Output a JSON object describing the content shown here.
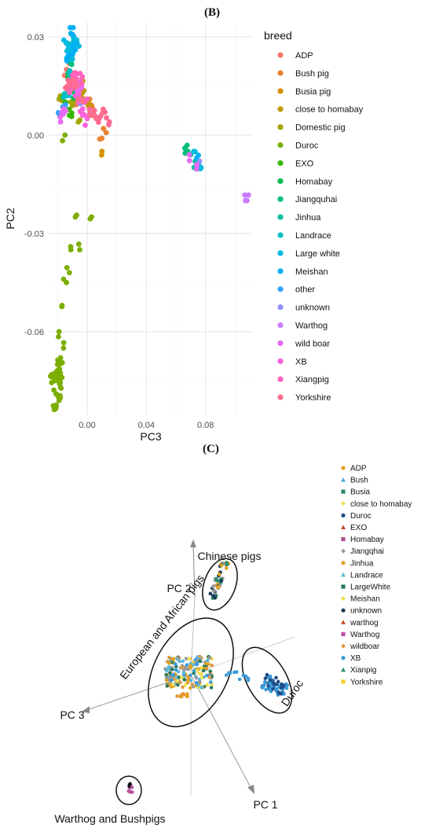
{
  "panel_b_label": "(B)",
  "panel_c_label": "(C)",
  "chart_data": [
    {
      "type": "scatter",
      "xlabel": "PC3",
      "ylabel": "PC2",
      "x_ticks": [
        "0.00",
        "0.04",
        "0.08"
      ],
      "x_tick_values": [
        0.0,
        0.04,
        0.08
      ],
      "y_ticks": [
        "0.03",
        "0.00",
        "-0.03",
        "-0.06"
      ],
      "y_tick_values": [
        0.03,
        0.0,
        -0.03,
        -0.06
      ],
      "xlim": [
        -0.026,
        0.112
      ],
      "ylim": [
        -0.0855,
        0.0345
      ],
      "grid": true,
      "legend_title": "breed",
      "legend_position": "right",
      "series": [
        {
          "name": "ADP",
          "color": "#F8766D",
          "points": [
            [
              -0.012,
              0.014
            ],
            [
              -0.01,
              0.018
            ],
            [
              -0.008,
              0.011
            ],
            [
              -0.014,
              0.02
            ]
          ]
        },
        {
          "name": "Bush pig",
          "color": "#EA8331",
          "points": [
            [
              0.01,
              -0.001
            ],
            [
              0.011,
              0.002
            ],
            [
              0.003,
              0.009
            ]
          ]
        },
        {
          "name": "Busia pig",
          "color": "#D89000",
          "points": [
            [
              0.01,
              -0.005
            ],
            [
              -0.005,
              0.012
            ],
            [
              0.004,
              0.007
            ]
          ]
        },
        {
          "name": "close to homabay",
          "color": "#C09B00",
          "points": [
            [
              -0.004,
              0.016
            ],
            [
              -0.003,
              0.013
            ],
            [
              0.001,
              0.009
            ]
          ]
        },
        {
          "name": "Domestic pig",
          "color": "#A3A500",
          "points": [
            [
              -0.018,
              0.012
            ],
            [
              -0.01,
              0.009
            ],
            [
              -0.006,
              0.004
            ]
          ]
        },
        {
          "name": "Duroc",
          "color": "#7CAE00",
          "points": [
            [
              -0.02,
              -0.072
            ],
            [
              -0.022,
              -0.075
            ],
            [
              -0.018,
              -0.077
            ],
            [
              -0.021,
              -0.079
            ],
            [
              -0.019,
              -0.081
            ],
            [
              -0.017,
              -0.074
            ],
            [
              -0.02,
              -0.07
            ],
            [
              -0.023,
              -0.073
            ],
            [
              -0.018,
              -0.068
            ],
            [
              -0.019,
              -0.06
            ],
            [
              -0.017,
              -0.052
            ],
            [
              -0.014,
              -0.045
            ],
            [
              -0.011,
              -0.035
            ],
            [
              -0.005,
              -0.035
            ],
            [
              -0.008,
              -0.025
            ],
            [
              0.003,
              -0.025
            ],
            [
              -0.012,
              -0.042
            ],
            [
              -0.015,
              0.0
            ],
            [
              -0.021,
              -0.083
            ],
            [
              -0.016,
              -0.065
            ]
          ]
        },
        {
          "name": "EXO",
          "color": "#39B600",
          "points": [
            [
              -0.015,
              0.01
            ],
            [
              -0.012,
              0.006
            ]
          ]
        },
        {
          "name": "Homabay",
          "color": "#00BB4E",
          "points": [
            [
              -0.013,
              0.017
            ],
            [
              -0.009,
              0.013
            ]
          ]
        },
        {
          "name": "Jiangquhai",
          "color": "#00BF7D",
          "points": [
            [
              -0.011,
              0.022
            ],
            [
              0.066,
              -0.004
            ],
            [
              0.068,
              -0.005
            ]
          ]
        },
        {
          "name": "Jinhua",
          "color": "#00C1A3",
          "points": [
            [
              -0.013,
              0.026
            ],
            [
              0.07,
              -0.006
            ],
            [
              0.073,
              -0.008
            ]
          ]
        },
        {
          "name": "Landrace",
          "color": "#00BFC4",
          "points": [
            [
              -0.014,
              0.012
            ],
            [
              -0.011,
              0.018
            ],
            [
              0.075,
              -0.009
            ]
          ]
        },
        {
          "name": "Large white",
          "color": "#00BAE0",
          "points": [
            [
              -0.012,
              0.027
            ],
            [
              -0.009,
              0.03
            ],
            [
              -0.014,
              0.028
            ],
            [
              -0.01,
              0.025
            ],
            [
              -0.007,
              0.029
            ],
            [
              0.072,
              -0.005
            ],
            [
              0.077,
              -0.01
            ]
          ]
        },
        {
          "name": "Meishan",
          "color": "#00B0F6",
          "points": [
            [
              -0.011,
              0.031
            ],
            [
              -0.008,
              0.026
            ],
            [
              -0.013,
              0.024
            ],
            [
              0.074,
              -0.007
            ]
          ]
        },
        {
          "name": "other",
          "color": "#35A2FF",
          "points": [
            [
              -0.018,
              0.006
            ],
            [
              -0.015,
              0.009
            ]
          ]
        },
        {
          "name": "unknown",
          "color": "#9590FF",
          "points": [
            [
              -0.005,
              0.01
            ],
            [
              0.076,
              -0.008
            ]
          ]
        },
        {
          "name": "Warthog",
          "color": "#C77CFF",
          "points": [
            [
              0.107,
              -0.02
            ],
            [
              0.108,
              -0.02
            ]
          ]
        },
        {
          "name": "wild boar",
          "color": "#E76BF3",
          "points": [
            [
              -0.018,
              0.004
            ],
            [
              -0.016,
              0.008
            ],
            [
              -0.005,
              0.014
            ],
            [
              0.069,
              -0.006
            ],
            [
              0.074,
              -0.009
            ]
          ]
        },
        {
          "name": "XB",
          "color": "#FA62DB",
          "points": [
            [
              -0.009,
              0.016
            ],
            [
              -0.006,
              0.012
            ],
            [
              -0.003,
              0.008
            ],
            [
              0.0,
              0.005
            ]
          ]
        },
        {
          "name": "Xiangpig",
          "color": "#FF62BC",
          "points": [
            [
              -0.012,
              0.013
            ],
            [
              -0.008,
              0.019
            ],
            [
              -0.004,
              0.017
            ],
            [
              0.0,
              0.011
            ]
          ]
        },
        {
          "name": "Yorkshire",
          "color": "#FF6C91",
          "points": [
            [
              -0.013,
              0.015
            ],
            [
              -0.01,
              0.017
            ],
            [
              -0.007,
              0.015
            ],
            [
              0.002,
              0.007
            ],
            [
              0.005,
              0.006
            ],
            [
              0.008,
              0.005
            ],
            [
              0.012,
              0.007
            ],
            [
              0.015,
              0.004
            ],
            [
              -0.004,
              0.011
            ]
          ]
        }
      ]
    },
    {
      "type": "scatter",
      "axis_labels": [
        "PC 1",
        "PC 2",
        "PC 3"
      ],
      "annotations": [
        "Chinese pigs",
        "European and African pigs",
        "Duroc",
        "Warthog and Bushpigs"
      ],
      "legend_position": "top-right",
      "legend": [
        {
          "name": "ADP",
          "marker": "circle",
          "color": "#E0A020"
        },
        {
          "name": "Bush",
          "marker": "triangle",
          "color": "#4FA8D8"
        },
        {
          "name": "Busia",
          "marker": "square",
          "color": "#2E8C6E"
        },
        {
          "name": "close to homabay",
          "marker": "diamond",
          "color": "#F2E050"
        },
        {
          "name": "Duroc",
          "marker": "circle",
          "color": "#1F4E8C"
        },
        {
          "name": "EXO",
          "marker": "triangle",
          "color": "#C8482A"
        },
        {
          "name": "Homabay",
          "marker": "square",
          "color": "#B05090"
        },
        {
          "name": "Jiangqhai",
          "marker": "diamond",
          "color": "#9A9A9A"
        },
        {
          "name": "Jinhua",
          "marker": "circle",
          "color": "#E0A020"
        },
        {
          "name": "Landrace",
          "marker": "triangle",
          "color": "#5AB8D8"
        },
        {
          "name": "LargeWhite",
          "marker": "square",
          "color": "#2E7A58"
        },
        {
          "name": "Meishan",
          "marker": "diamond",
          "color": "#F2E050"
        },
        {
          "name": "unknown",
          "marker": "circle",
          "color": "#1A3A5A"
        },
        {
          "name": "warthog",
          "marker": "triangle",
          "color": "#C8482A"
        },
        {
          "name": "Warthog",
          "marker": "square",
          "color": "#C050A8"
        },
        {
          "name": "wildboar",
          "marker": "diamond",
          "color": "#E09A40"
        },
        {
          "name": "XB",
          "marker": "circle",
          "color": "#3A9AD8"
        },
        {
          "name": "Xianpig",
          "marker": "triangle",
          "color": "#2E8C6E"
        },
        {
          "name": "Yorkshire",
          "marker": "square",
          "color": "#F2D030"
        }
      ]
    }
  ]
}
